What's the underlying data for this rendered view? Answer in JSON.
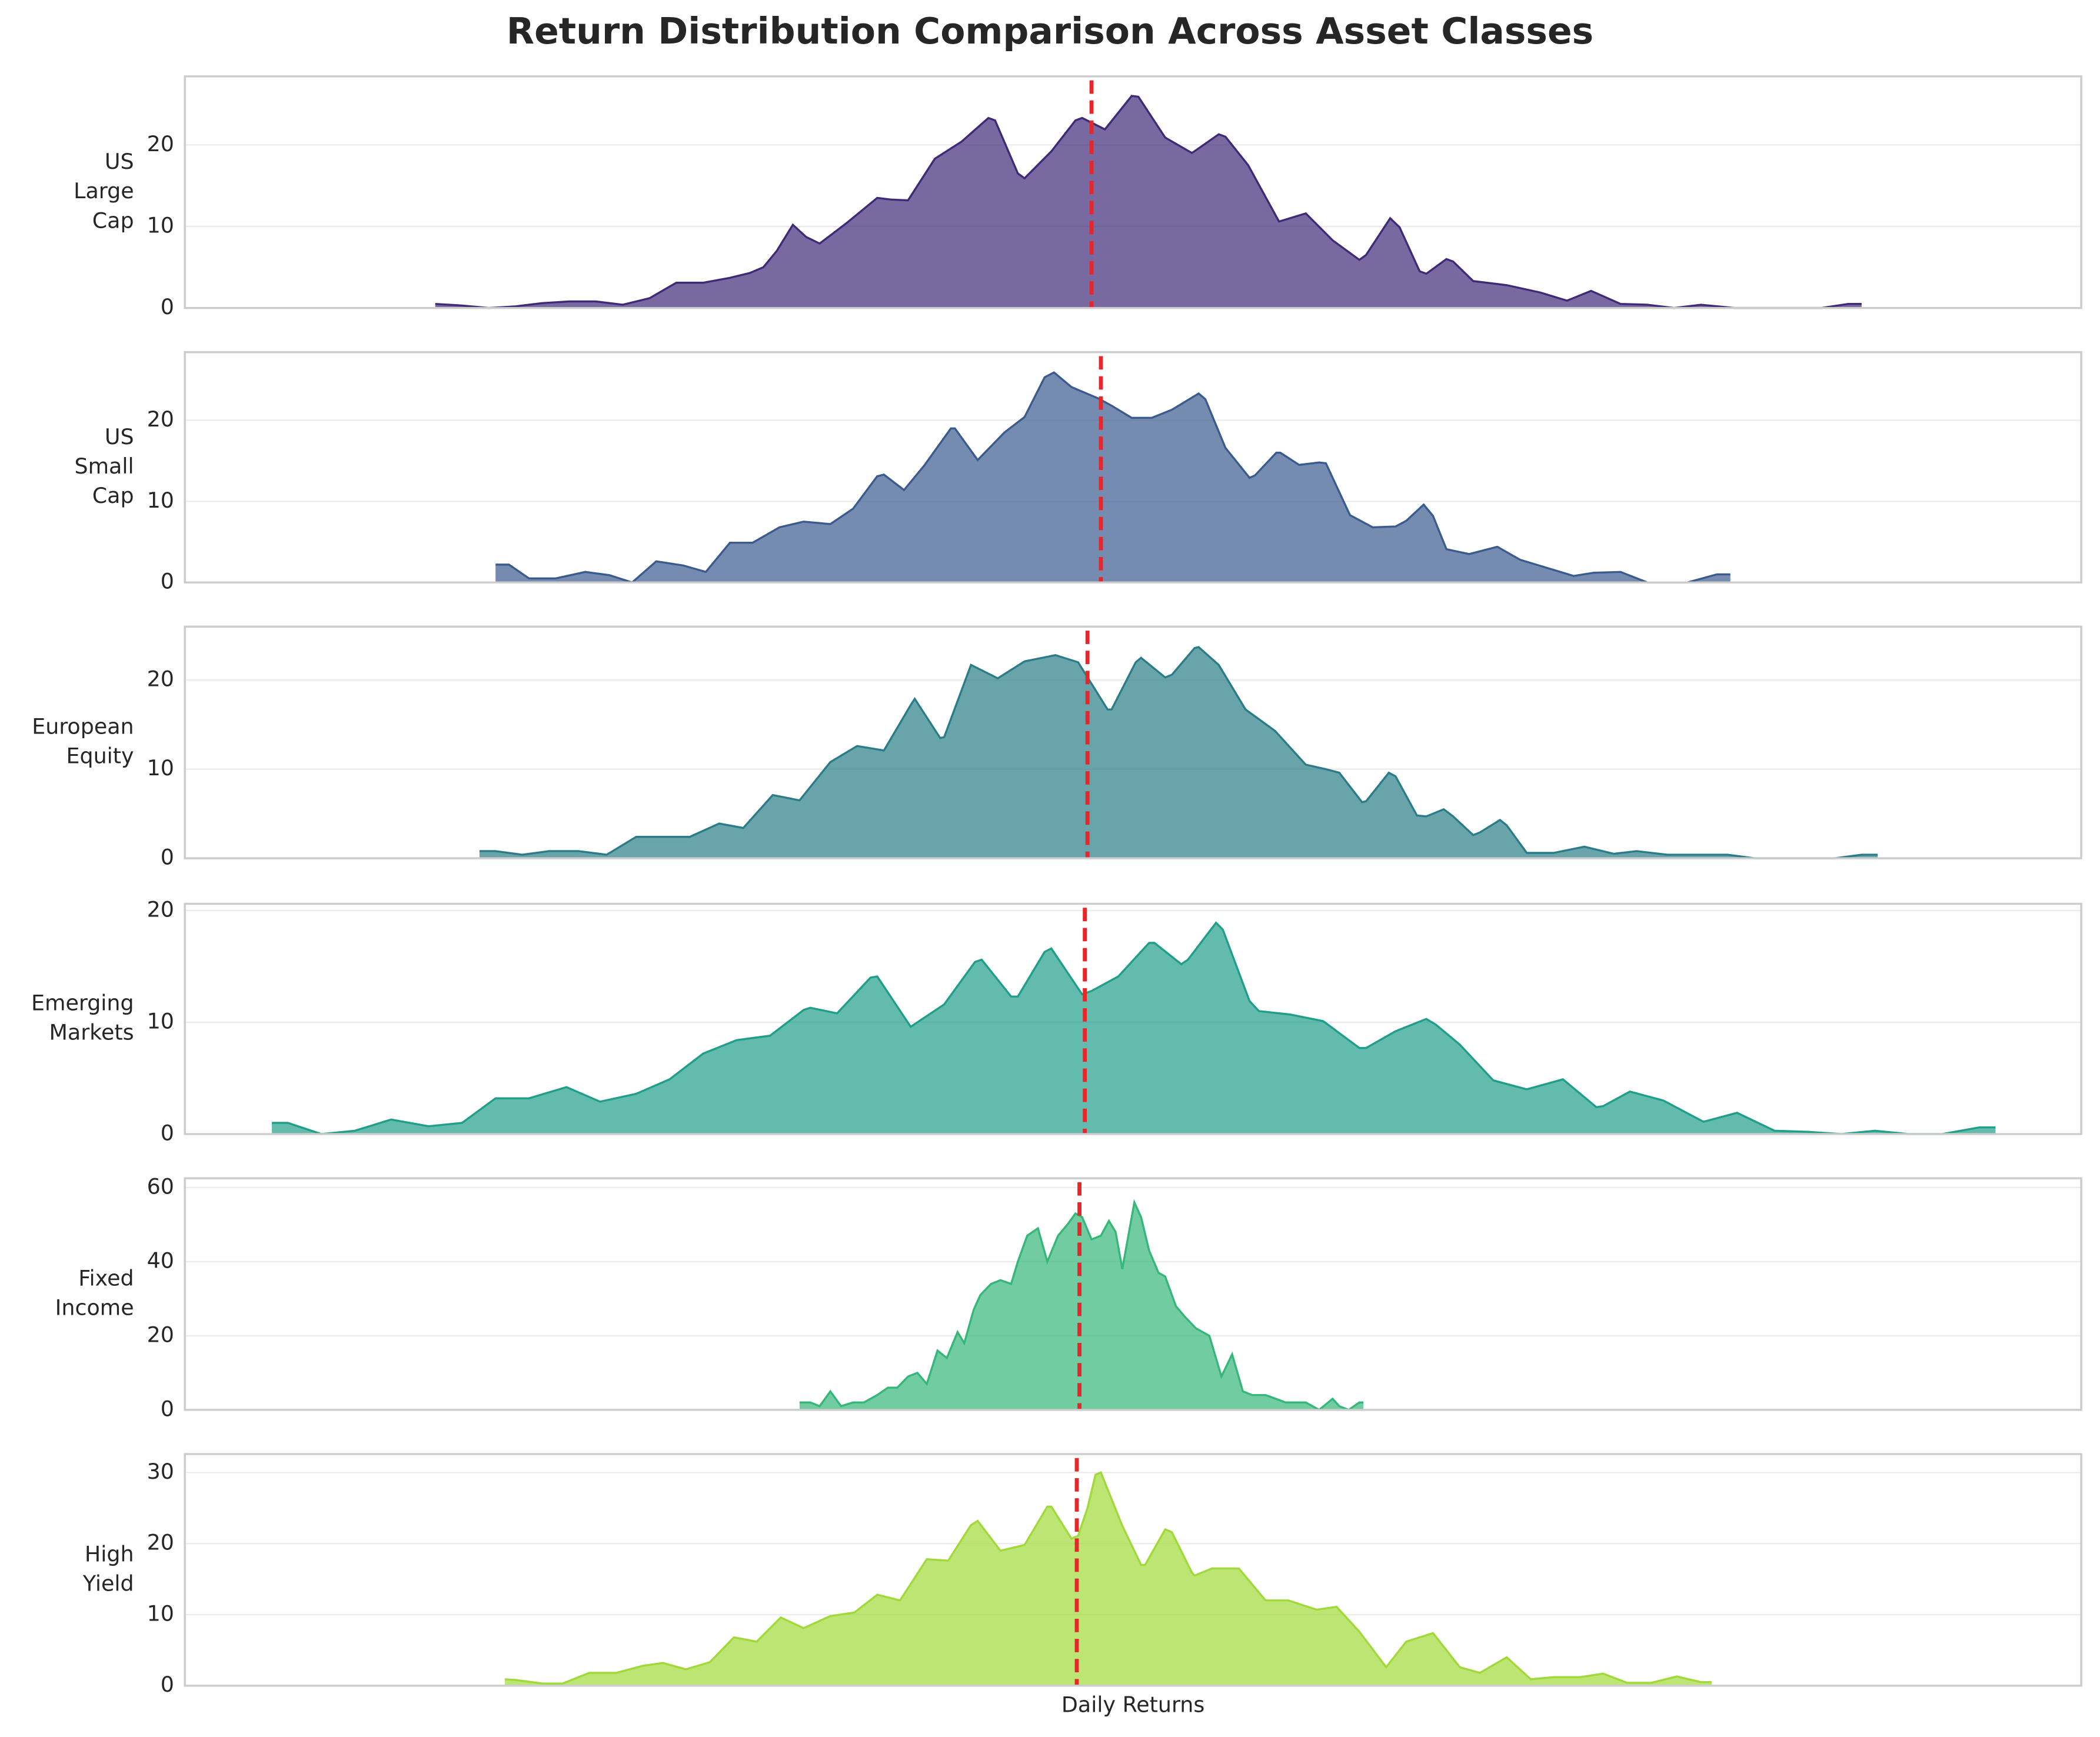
{
  "title": "Return Distribution Comparison Across Asset Classes",
  "x_label": "Daily Returns",
  "chart_data": [
    {
      "type": "area",
      "ylabel": [
        "US",
        "Large",
        "Cap"
      ],
      "color": "#3f2a78",
      "mean": -31,
      "xlim": [
        -708,
        708
      ],
      "ylim": [
        0,
        28.4
      ],
      "yticks": [
        0,
        10,
        20
      ],
      "grid": true,
      "x": [
        -521,
        -501,
        -481,
        -461,
        -441,
        -421,
        -401,
        -381,
        -361,
        -341,
        -321,
        -301,
        -286,
        -276,
        -266,
        -254,
        -244,
        -234,
        -214,
        -191,
        -181,
        -168,
        -148,
        -128,
        -108,
        -103,
        -86,
        -81,
        -61,
        -43,
        -38,
        -21,
        -1,
        4,
        24,
        44,
        64,
        69,
        86,
        109,
        129,
        149,
        169,
        174,
        192,
        199,
        214,
        219,
        234,
        239,
        254,
        279,
        304,
        324,
        342,
        364,
        384,
        404,
        424,
        449,
        514,
        534,
        544
      ],
      "values": [
        0.5,
        0.3,
        0,
        0.2,
        0.6,
        0.8,
        0.8,
        0.4,
        1.2,
        3.1,
        3.1,
        3.7,
        4.3,
        5,
        7,
        10.2,
        8.7,
        7.9,
        10.4,
        13.5,
        13.3,
        13.2,
        18.3,
        20.4,
        23.3,
        23,
        16.5,
        15.9,
        19.2,
        23,
        23.3,
        21.9,
        26,
        25.9,
        20.9,
        19,
        21.3,
        21,
        17.5,
        10.6,
        11.6,
        8.3,
        5.9,
        6.5,
        11,
        9.9,
        4.5,
        4.2,
        6,
        5.7,
        3.3,
        2.8,
        1.9,
        0.9,
        2.1,
        0.5,
        0.4,
        0,
        0.4,
        0,
        0,
        0.5,
        0.5
      ]
    },
    {
      "type": "area",
      "ylabel": [
        "US",
        "Small",
        "Cap"
      ],
      "color": "#3b5b8e",
      "mean": -24,
      "xlim": [
        -708,
        708
      ],
      "ylim": [
        0,
        28.4
      ],
      "yticks": [
        0,
        10,
        20
      ],
      "grid": true,
      "x": [
        -476,
        -466,
        -451,
        -431,
        -409,
        -391,
        -374,
        -356,
        -336,
        -319,
        -301,
        -284,
        -264,
        -246,
        -226,
        -209,
        -191,
        -186,
        -171,
        -156,
        -136,
        -133,
        -116,
        -96,
        -81,
        -66,
        -59,
        -46,
        -26,
        -16,
        -1,
        14,
        29,
        49,
        54,
        69,
        87,
        91,
        107,
        110,
        124,
        139,
        144,
        162,
        179,
        196,
        204,
        217,
        224,
        234,
        251,
        272,
        289,
        309,
        329,
        344,
        364,
        384,
        414,
        436,
        446
      ],
      "values": [
        2.2,
        2.2,
        0.5,
        0.5,
        1.3,
        0.9,
        0,
        2.6,
        2.1,
        1.3,
        4.9,
        4.9,
        6.8,
        7.5,
        7.2,
        9.1,
        13.1,
        13.3,
        11.4,
        14.4,
        19,
        19,
        15.1,
        18.5,
        20.4,
        25.3,
        25.9,
        24.1,
        22.7,
        21.8,
        20.3,
        20.3,
        21.3,
        23.3,
        22.6,
        16.6,
        12.9,
        13.2,
        16,
        16,
        14.5,
        14.8,
        14.7,
        8.3,
        6.8,
        6.9,
        7.6,
        9.6,
        8.2,
        4.1,
        3.5,
        4.4,
        2.8,
        1.8,
        0.8,
        1.2,
        1.3,
        0,
        0,
        1,
        1
      ]
    },
    {
      "type": "area",
      "ylabel": [
        "European",
        "Equity"
      ],
      "color": "#2a7d88",
      "mean": -34,
      "xlim": [
        -708,
        708
      ],
      "ylim": [
        0,
        26.0
      ],
      "yticks": [
        0,
        10,
        20
      ],
      "grid": true,
      "x": [
        -488,
        -476,
        -456,
        -436,
        -414,
        -393,
        -371,
        -351,
        -331,
        -309,
        -291,
        -269,
        -249,
        -226,
        -206,
        -186,
        -166,
        -163,
        -144,
        -141,
        -121,
        -101,
        -81,
        -58,
        -41,
        -19,
        -16,
        2,
        6,
        24,
        29,
        46,
        49,
        64,
        84,
        106,
        129,
        144,
        154,
        171,
        174,
        191,
        196,
        212,
        219,
        232,
        239,
        254,
        259,
        274,
        279,
        294,
        314,
        337,
        359,
        376,
        399,
        444,
        464,
        524,
        544,
        556
      ],
      "values": [
        0.8,
        0.8,
        0.4,
        0.8,
        0.8,
        0.4,
        2.4,
        2.4,
        2.4,
        3.9,
        3.4,
        7.1,
        6.5,
        10.8,
        12.6,
        12.1,
        17.2,
        17.9,
        13.5,
        13.6,
        21.7,
        20.2,
        22.1,
        22.8,
        22,
        16.7,
        16.7,
        22,
        22.5,
        20.3,
        20.6,
        23.6,
        23.7,
        21.7,
        16.7,
        14.3,
        10.5,
        10,
        9.6,
        6.3,
        6.4,
        9.6,
        9.2,
        4.8,
        4.7,
        5.5,
        4.7,
        2.6,
        2.9,
        4.3,
        3.7,
        0.6,
        0.6,
        1.3,
        0.5,
        0.8,
        0.4,
        0.4,
        0,
        0,
        0.4,
        0.4
      ]
    },
    {
      "type": "area",
      "ylabel": [
        "Emerging",
        "Markets"
      ],
      "color": "#1f9e89",
      "mean": -36,
      "xlim": [
        -708,
        708
      ],
      "ylim": [
        0,
        20.6
      ],
      "yticks": [
        0,
        10,
        20
      ],
      "grid": true,
      "x": [
        -643,
        -631,
        -606,
        -581,
        -554,
        -526,
        -501,
        -476,
        -451,
        -423,
        -398,
        -371,
        -346,
        -321,
        -296,
        -271,
        -246,
        -241,
        -221,
        -196,
        -191,
        -166,
        -141,
        -118,
        -113,
        -91,
        -86,
        -66,
        -61,
        -38,
        -31,
        -11,
        12,
        16,
        36,
        41,
        62,
        67,
        87,
        94,
        117,
        142,
        169,
        174,
        196,
        219,
        226,
        244,
        269,
        294,
        321,
        346,
        351,
        371,
        396,
        426,
        451,
        479,
        504,
        529,
        554,
        579,
        604,
        632,
        644
      ],
      "values": [
        1,
        1,
        0,
        0.3,
        1.3,
        0.7,
        1,
        3.2,
        3.2,
        4.2,
        2.9,
        3.6,
        4.9,
        7.2,
        8.4,
        8.8,
        11.1,
        11.3,
        10.8,
        14,
        14.1,
        9.6,
        11.6,
        15.4,
        15.6,
        12.3,
        12.3,
        16.3,
        16.6,
        12.5,
        12.8,
        14.1,
        17.1,
        17.1,
        15.2,
        15.6,
        18.9,
        18.3,
        11.9,
        11,
        10.7,
        10.1,
        7.7,
        7.7,
        9.2,
        10.3,
        9.8,
        8,
        4.8,
        4,
        4.9,
        2.4,
        2.5,
        3.8,
        3,
        1.1,
        1.9,
        0.3,
        0.2,
        0,
        0.3,
        0,
        0,
        0.6,
        0.6
      ]
    },
    {
      "type": "area",
      "ylabel": [
        "Fixed",
        "Income"
      ],
      "color": "#35b779",
      "mean": -40,
      "xlim": [
        -708,
        708
      ],
      "ylim": [
        0,
        62.5
      ],
      "yticks": [
        0,
        20,
        40,
        60
      ],
      "grid": true,
      "x": [
        -249,
        -241,
        -234,
        -226,
        -218,
        -209,
        -201,
        -191,
        -183,
        -176,
        -168,
        -161,
        -154,
        -146,
        -139,
        -131,
        -126,
        -119,
        -114,
        -106,
        -99,
        -91,
        -86,
        -79,
        -71,
        -64,
        -56,
        -49,
        -43,
        -38,
        -31,
        -24,
        -18,
        -13,
        -8,
        1,
        6,
        12,
        19,
        24,
        32,
        39,
        47,
        57,
        66,
        74,
        82,
        89,
        99,
        114,
        129,
        139,
        149,
        154,
        161,
        169,
        172
      ],
      "values": [
        2,
        2,
        1,
        5,
        1,
        2,
        2,
        4,
        6,
        6,
        9,
        10,
        7,
        16,
        14,
        21,
        18,
        27,
        31,
        34,
        35,
        34,
        40,
        47,
        49,
        40,
        47,
        50,
        53,
        52,
        46,
        47,
        51,
        48,
        38,
        56,
        52,
        43,
        37,
        36,
        28,
        25,
        22,
        20,
        9,
        15,
        5,
        4,
        4,
        2,
        2,
        0,
        3,
        1,
        0,
        2,
        2
      ]
    },
    {
      "type": "area",
      "ylabel": [
        "High",
        "Yield"
      ],
      "color": "#a0da39",
      "mean": -42,
      "xlim": [
        -708,
        708
      ],
      "ylim": [
        0,
        32.6
      ],
      "yticks": [
        0,
        10,
        20,
        30
      ],
      "grid": true,
      "x": [
        -469,
        -461,
        -441,
        -426,
        -406,
        -386,
        -366,
        -351,
        -334,
        -316,
        -298,
        -281,
        -263,
        -246,
        -226,
        -208,
        -191,
        -174,
        -154,
        -138,
        -121,
        -116,
        -99,
        -81,
        -64,
        -61,
        -46,
        -41,
        -34,
        -28,
        -24,
        -8,
        6,
        9,
        24,
        29,
        44,
        46,
        59,
        79,
        99,
        116,
        137,
        152,
        169,
        189,
        204,
        224,
        244,
        259,
        279,
        297,
        314,
        334,
        351,
        369,
        387,
        406,
        424,
        432
      ],
      "values": [
        0.9,
        0.8,
        0.3,
        0.3,
        1.8,
        1.8,
        2.8,
        3.2,
        2.3,
        3.3,
        6.8,
        6.2,
        9.6,
        8.1,
        9.8,
        10.3,
        12.8,
        12,
        17.8,
        17.6,
        22.6,
        23.2,
        19,
        19.8,
        25.2,
        25.2,
        20.7,
        21.1,
        25,
        29.7,
        30,
        22.5,
        17,
        17,
        22,
        21.6,
        15.9,
        15.5,
        16.5,
        16.5,
        12,
        12,
        10.7,
        11.1,
        7.6,
        2.6,
        6.2,
        7.4,
        2.6,
        1.8,
        4,
        0.9,
        1.2,
        1.2,
        1.7,
        0.4,
        0.4,
        1.3,
        0.5,
        0.5
      ]
    }
  ]
}
